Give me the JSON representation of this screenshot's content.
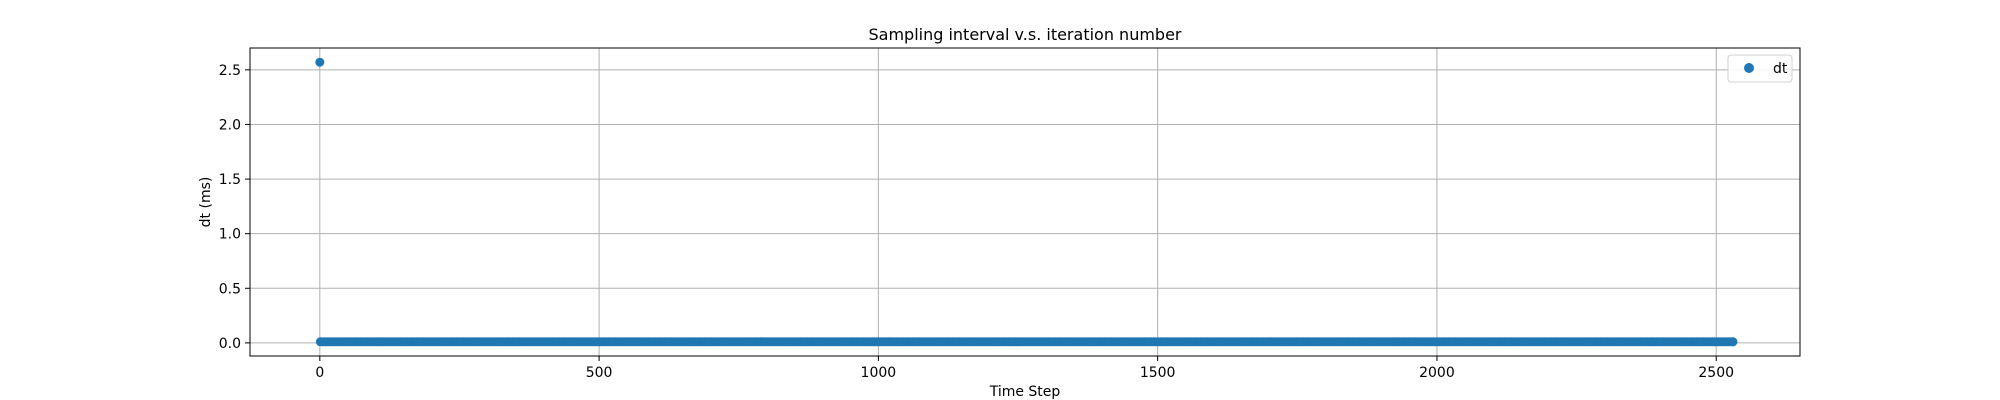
{
  "chart_data": {
    "type": "scatter",
    "title": "Sampling interval v.s. iteration number",
    "xlabel": "Time Step",
    "ylabel": "dt (ms)",
    "xlim": [
      -125,
      2650
    ],
    "ylim": [
      -0.12,
      2.7
    ],
    "xticks": [
      0,
      500,
      1000,
      1500,
      2000,
      2500
    ],
    "xtick_labels": [
      "0",
      "500",
      "1000",
      "1500",
      "2000",
      "2500"
    ],
    "yticks": [
      0.0,
      0.5,
      1.0,
      1.5,
      2.0,
      2.5
    ],
    "ytick_labels": [
      "0.0",
      "0.5",
      "1.0",
      "1.5",
      "2.0",
      "2.5"
    ],
    "grid": true,
    "legend_position": "top-right",
    "series": [
      {
        "name": "dt",
        "color": "#1f77b4",
        "marker": "circle",
        "outlier": {
          "x": 0,
          "y": 2.57
        },
        "baseline": {
          "x_start": 1,
          "x_end": 2530,
          "y": 0.01
        }
      }
    ]
  }
}
